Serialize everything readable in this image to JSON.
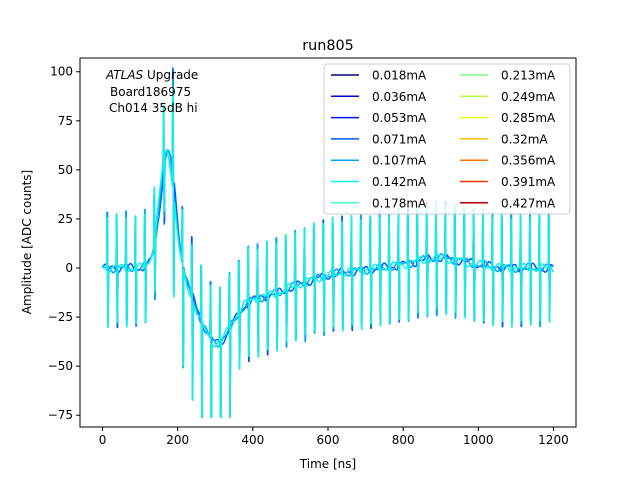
{
  "chart_data": {
    "type": "line",
    "title": "run805",
    "xlabel": "Time [ns]",
    "ylabel": "Amplitude [ADC counts]",
    "xlim": [
      -60,
      1260
    ],
    "ylim": [
      -81,
      107
    ],
    "xticks": [
      0,
      200,
      400,
      600,
      800,
      1000,
      1200
    ],
    "yticks": [
      -75,
      -50,
      -25,
      0,
      25,
      50,
      75,
      100
    ],
    "annotation": {
      "line1_italic": "ATLAS",
      "line1_rest": " Upgrade",
      "line2": "Board186975",
      "line3": "Ch014 35dB hi"
    },
    "legend_position": "top-right",
    "legend_columns": 2,
    "series": [
      {
        "name": "0.018mA",
        "color": "#000080",
        "visible": false
      },
      {
        "name": "0.036mA",
        "color": "#0000d1",
        "visible": false
      },
      {
        "name": "0.053mA",
        "color": "#0010ff",
        "visible": false
      },
      {
        "name": "0.071mA",
        "color": "#0058ff",
        "visible": true
      },
      {
        "name": "0.107mA",
        "color": "#00a4ff",
        "visible": true
      },
      {
        "name": "0.142mA",
        "color": "#13f0e3",
        "visible": true
      },
      {
        "name": "0.178mA",
        "color": "#46ffb0",
        "visible": false
      },
      {
        "name": "0.213mA",
        "color": "#7dff7a",
        "visible": false
      },
      {
        "name": "0.249mA",
        "color": "#b0ff46",
        "visible": false
      },
      {
        "name": "0.285mA",
        "color": "#e3ff13",
        "visible": false
      },
      {
        "name": "0.32mA",
        "color": "#ffb900",
        "visible": false
      },
      {
        "name": "0.356mA",
        "color": "#ff7300",
        "visible": false
      },
      {
        "name": "0.391mA",
        "color": "#ff3000",
        "visible": false
      },
      {
        "name": "0.427mA",
        "color": "#b20000",
        "visible": false
      }
    ],
    "waveform": {
      "t_range": [
        0,
        1200
      ],
      "sample_step_ns": 2,
      "glitch_first_ns": 12,
      "glitch_period_ns": 25,
      "glitch_amplitude_up": 27,
      "glitch_amplitude_down": -28,
      "pulse_peak_time": 175,
      "pulse_peak_value": 60,
      "pulse_min_time": 300,
      "pulse_min_value": -32,
      "tail_bump_time": 900,
      "tail_bump_value": 5
    }
  }
}
